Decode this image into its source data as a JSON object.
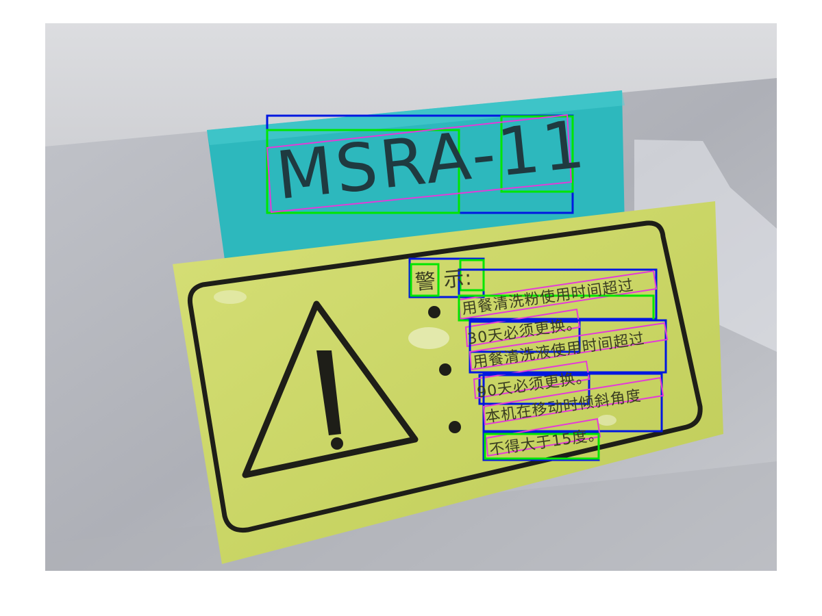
{
  "blue_label": {
    "text": "MSRA-11"
  },
  "warning_sticker": {
    "title": "警 示:",
    "lines": [
      "用餐清洗粉使用时间超过",
      "30天必须更换。",
      "用餐清洗液使用时间超过",
      "90天必须更换。",
      "本机在移动时倾斜角度",
      "不得大于15度。"
    ]
  },
  "colors": {
    "wall": "#d9dadd",
    "metal_surface": "#b4b6bd",
    "cyan_label": "#2cbcc0",
    "yellow_sticker": "#cdd96a",
    "sticker_ink": "#1a1a14",
    "box_green": "#00e600",
    "box_blue": "#0017e0",
    "box_magenta": "#e33ad8"
  }
}
